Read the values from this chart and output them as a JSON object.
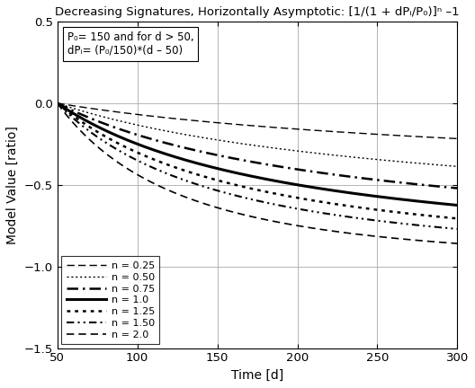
{
  "title": "Decreasing Signatures, Horizontally Asymptotic: [1/(1 + dPᵢ/P₀)]ⁿ –1",
  "xlabel": "Time [d]",
  "ylabel": "Model Value [ratio]",
  "P0": 150,
  "d_start": 50,
  "d_end": 300,
  "xlim": [
    50,
    300
  ],
  "ylim": [
    -1.5,
    0.5
  ],
  "ann1": "P₀= 150 and for d > 50,",
  "ann2": "dPᵢ= (P₀/150)*(d – 50)",
  "n_values": [
    0.25,
    0.5,
    0.75,
    1.0,
    1.25,
    1.5,
    2.0
  ],
  "n_labels": [
    "n = 0.25",
    "n = 0.50",
    "n = 0.75",
    "n = 1.0",
    "n = 1.25",
    "n = 1.50",
    "n = 2.0"
  ],
  "xticks": [
    50,
    100,
    150,
    200,
    250,
    300
  ],
  "yticks": [
    -1.5,
    -1.0,
    -0.5,
    0.0,
    0.5
  ],
  "figsize": [
    5.28,
    4.32
  ],
  "dpi": 100
}
